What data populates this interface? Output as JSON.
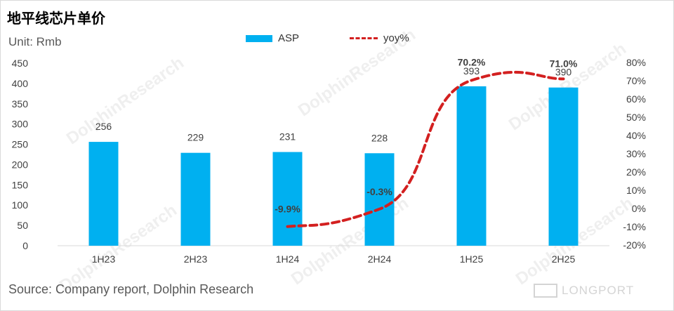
{
  "header": {
    "title": "地平线芯片单价",
    "unit": "Unit: Rmb"
  },
  "footer": {
    "source": "Source: Company report, Dolphin Research"
  },
  "watermark": {
    "text": "DolphinResearch",
    "logo_text": "LONGPORT"
  },
  "colors": {
    "bar": "#00b0f0",
    "line": "#d32020",
    "text": "#404040"
  },
  "chart_data": {
    "type": "bar",
    "categories": [
      "1H23",
      "2H23",
      "1H24",
      "2H24",
      "1H25",
      "2H25"
    ],
    "series": [
      {
        "name": "ASP",
        "type": "bar",
        "axis": "left",
        "values": [
          256,
          229,
          231,
          228,
          393,
          390
        ],
        "labels": [
          "256",
          "229",
          "231",
          "228",
          "393",
          "390"
        ]
      },
      {
        "name": "yoy%",
        "type": "line",
        "axis": "right",
        "style": "dashed",
        "values": [
          null,
          null,
          -9.9,
          -0.3,
          70.2,
          71.0
        ],
        "labels": [
          "",
          "",
          "-9.9%",
          "-0.3%",
          "70.2%",
          "71.0%"
        ]
      }
    ],
    "left_axis": {
      "ylim": [
        0,
        450
      ],
      "ticks": [
        "0",
        "50",
        "100",
        "150",
        "200",
        "250",
        "300",
        "350",
        "400",
        "450"
      ]
    },
    "right_axis": {
      "ylim": [
        -20,
        80
      ],
      "ticks": [
        "-20%",
        "-10%",
        "0%",
        "10%",
        "20%",
        "30%",
        "40%",
        "50%",
        "60%",
        "70%",
        "80%"
      ]
    },
    "legend": {
      "position": "top",
      "entries": [
        "ASP",
        "yoy%"
      ]
    },
    "grid": false
  }
}
